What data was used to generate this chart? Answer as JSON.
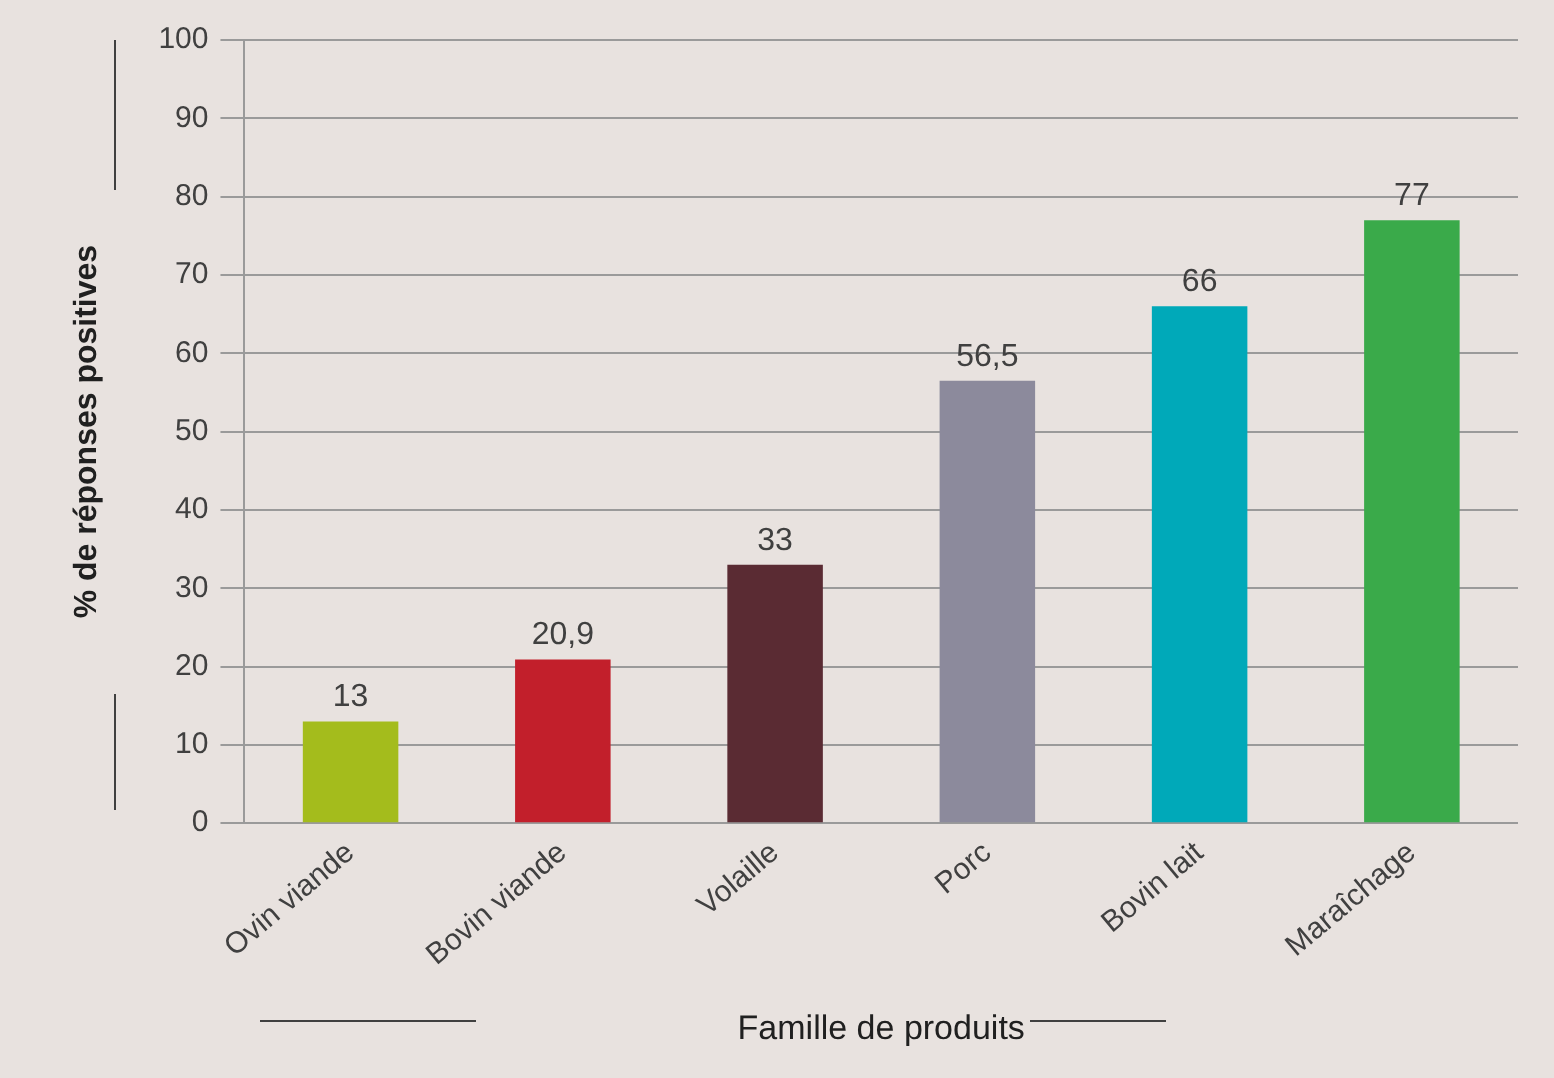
{
  "chart_data": {
    "type": "bar",
    "xlabel": "Famille de produits",
    "ylabel": "% de réponses positives",
    "categories": [
      "Ovin viande",
      "Bovin viande",
      "Volaille",
      "Porc",
      "Bovin lait",
      "Maraîchage"
    ],
    "values": [
      13,
      20.9,
      33,
      56.5,
      66,
      77
    ],
    "colors": [
      "#a4bc1c",
      "#c21f2b",
      "#5a2b33",
      "#8c8a9c",
      "#00a9b9",
      "#3aaa4a"
    ],
    "value_labels": [
      "13",
      "20,9",
      "33",
      "56,5",
      "66",
      "77"
    ],
    "ylim": [
      0,
      100
    ],
    "yticks": [
      0,
      10,
      20,
      30,
      40,
      50,
      60,
      70,
      80,
      90,
      100
    ],
    "grid": "y"
  }
}
